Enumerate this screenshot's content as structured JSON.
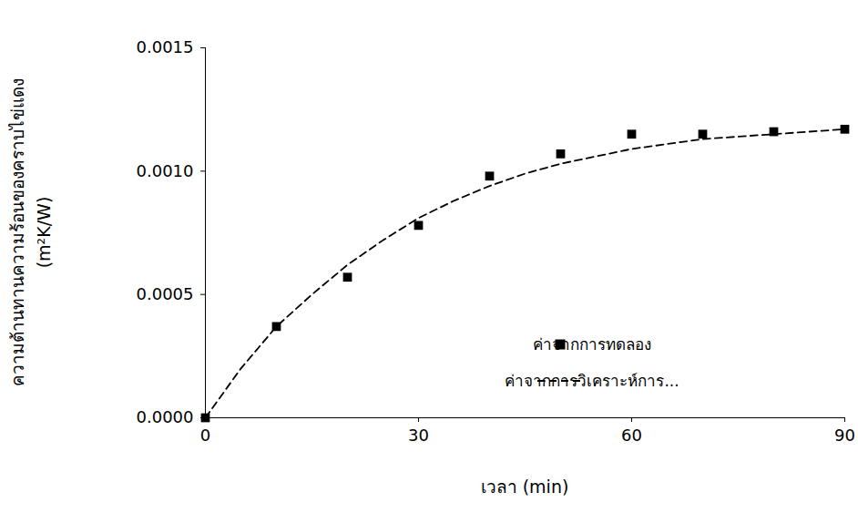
{
  "chart_data": {
    "type": "line",
    "x_label": "เวลา (min)",
    "y_label": "ความต้านทานความร้อนของคราบไข่แดง (m²K/W)",
    "xlim": [
      0,
      90
    ],
    "xticks": [
      0,
      30,
      60,
      90
    ],
    "ylim": [
      0,
      0.0015
    ],
    "yticks": [
      {
        "value": 0,
        "label": "0.0000"
      },
      {
        "value": 0.0005,
        "label": "0.0005"
      },
      {
        "value": 0.001,
        "label": "0.0010"
      },
      {
        "value": 0.0015,
        "label": "0.0015"
      }
    ],
    "grid": false,
    "legend": "lower right",
    "series": [
      {
        "name": "ค่าจากการทดลอง",
        "type": "scatter",
        "marker": "square",
        "color": "#000000",
        "x": [
          0,
          10,
          20,
          30,
          40,
          50,
          60,
          70,
          80,
          90
        ],
        "values": [
          0,
          0.00037,
          0.00057,
          0.00078,
          0.00098,
          0.00107,
          0.00115,
          0.00115,
          0.00116,
          0.00117
        ]
      },
      {
        "name": "ค่าจากการวิเคราะห์การ...",
        "type": "line",
        "line_style": "dashed",
        "color": "#000000",
        "x": [
          0,
          5,
          10,
          15,
          20,
          25,
          30,
          35,
          40,
          45,
          50,
          55,
          60,
          65,
          70,
          75,
          80,
          85,
          90
        ],
        "values": [
          0,
          0.0002,
          0.00037,
          0.0005,
          0.00062,
          0.00072,
          0.00081,
          0.00088,
          0.00094,
          0.00099,
          0.00103,
          0.00106,
          0.00109,
          0.00111,
          0.00113,
          0.00114,
          0.00115,
          0.00116,
          0.00117
        ]
      }
    ]
  }
}
